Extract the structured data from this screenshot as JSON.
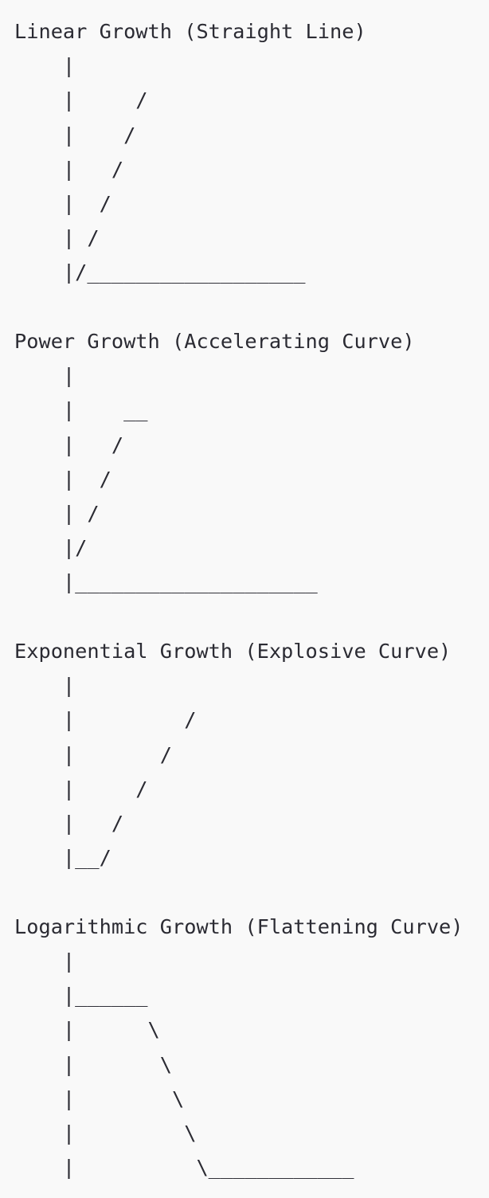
{
  "diagrams": [
    {
      "title": "Linear Growth (Straight Line)",
      "lines": [
        "    |",
        "    |     /",
        "    |    /",
        "    |   /",
        "    |  /",
        "    | /",
        "    |/__________________"
      ]
    },
    {
      "title": "Power Growth (Accelerating Curve)",
      "lines": [
        "    |",
        "    |    __",
        "    |   /",
        "    |  /",
        "    | /",
        "    |/",
        "    |____________________"
      ]
    },
    {
      "title": "Exponential Growth (Explosive Curve)",
      "lines": [
        "    |",
        "    |         /",
        "    |       /",
        "    |     /",
        "    |   /",
        "    |__/"
      ]
    },
    {
      "title": "Logarithmic Growth (Flattening Curve)",
      "lines": [
        "    |",
        "    |______",
        "    |      \\",
        "    |       \\",
        "    |        \\",
        "    |         \\",
        "    |          \\____________"
      ]
    }
  ]
}
